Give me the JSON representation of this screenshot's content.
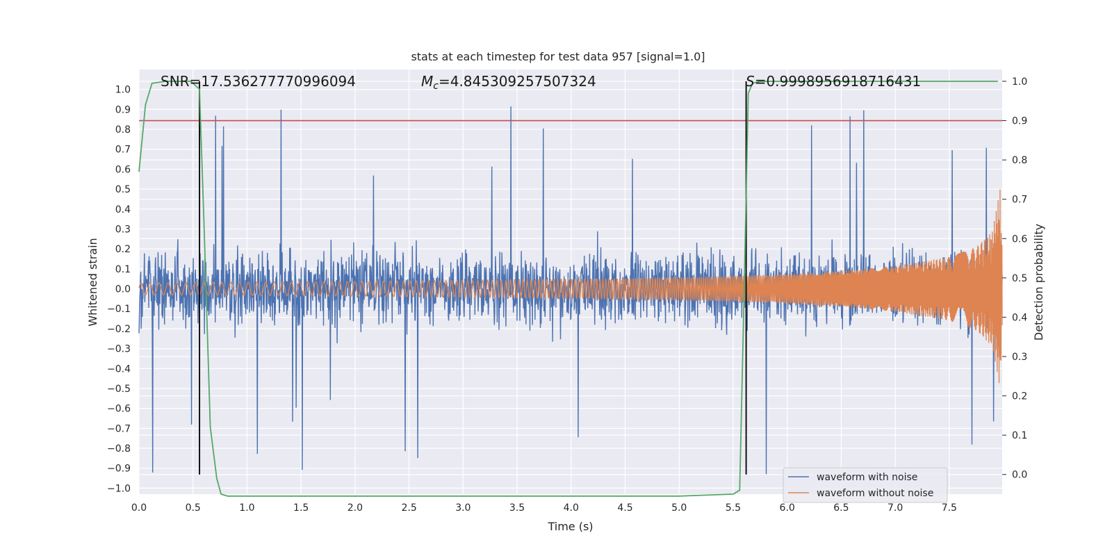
{
  "chart_data": {
    "type": "line",
    "title": "stats at each timestep for test data 957 [signal=1.0]",
    "xlabel": "Time (s)",
    "ylabel": "Whitened strain",
    "y2label": "Detection probability",
    "xlim": [
      0.0,
      7.99
    ],
    "ylim": [
      -1.03,
      1.1
    ],
    "y2lim": [
      -0.05,
      1.03
    ],
    "x_ticks": [
      0.0,
      0.5,
      1.0,
      1.5,
      2.0,
      2.5,
      3.0,
      3.5,
      4.0,
      4.5,
      5.0,
      5.5,
      6.0,
      6.5,
      7.0,
      7.5
    ],
    "y_ticks": [
      -1.0,
      -0.9,
      -0.8,
      -0.7,
      -0.6,
      -0.5,
      -0.4,
      -0.3,
      -0.2,
      -0.1,
      0.0,
      0.1,
      0.2,
      0.3,
      0.4,
      0.5,
      0.6,
      0.7,
      0.8,
      0.9,
      1.0
    ],
    "y2_ticks": [
      0.0,
      0.1,
      0.2,
      0.3,
      0.4,
      0.5,
      0.6,
      0.7,
      0.8,
      0.9,
      1.0
    ],
    "grid": true,
    "legend_position": "lower-right",
    "annotations": {
      "snr": "SNR=17.536277770996094",
      "mc_symbol": "M",
      "mc_sub": "c",
      "mc_value": "=4.845309257507324",
      "s_symbol": "S",
      "s_value": "=0.9998956918716431"
    },
    "threshold": {
      "axis": "right",
      "y": 0.9,
      "color": "#c44e52"
    },
    "vlines": [
      0.56,
      5.62
    ],
    "series": [
      {
        "name": "waveform with noise",
        "color": "#4c72b0",
        "description_stats": {
          "typical_range": [
            -0.55,
            0.55
          ],
          "peak_max": 1.0,
          "peak_min": -0.93
        }
      },
      {
        "name": "waveform without noise",
        "color": "#dd8452",
        "envelope": {
          "x": [
            0.0,
            1.0,
            2.0,
            3.0,
            4.0,
            5.0,
            5.5,
            6.0,
            6.5,
            7.0,
            7.5,
            7.75,
            7.9,
            7.97,
            7.99
          ],
          "amp": [
            0.03,
            0.033,
            0.037,
            0.042,
            0.048,
            0.057,
            0.064,
            0.074,
            0.09,
            0.115,
            0.16,
            0.21,
            0.29,
            0.5,
            0.2
          ]
        }
      },
      {
        "name": "detection probability",
        "color": "#55a868",
        "axis": "right",
        "x": [
          0.0,
          0.06,
          0.12,
          0.25,
          0.35,
          0.48,
          0.56,
          0.6,
          0.66,
          0.72,
          0.76,
          0.82,
          1.0,
          2.0,
          3.0,
          4.0,
          5.0,
          5.5,
          5.56,
          5.6,
          5.64,
          5.68,
          5.75,
          6.0,
          7.0,
          7.95
        ],
        "values": [
          0.77,
          0.94,
          0.995,
          1.0,
          1.0,
          1.0,
          0.98,
          0.65,
          0.12,
          -0.01,
          -0.05,
          -0.055,
          -0.055,
          -0.055,
          -0.055,
          -0.055,
          -0.055,
          -0.05,
          -0.04,
          0.45,
          0.97,
          0.995,
          1.0,
          1.0,
          1.0,
          1.0
        ]
      }
    ]
  }
}
